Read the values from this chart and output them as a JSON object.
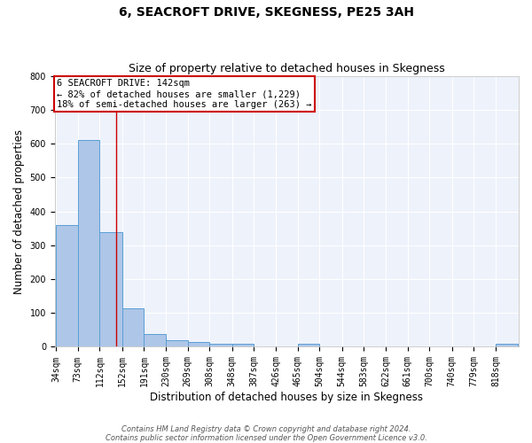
{
  "title": "6, SEACROFT DRIVE, SKEGNESS, PE25 3AH",
  "subtitle": "Size of property relative to detached houses in Skegness",
  "xlabel": "Distribution of detached houses by size in Skegness",
  "ylabel": "Number of detached properties",
  "bar_edges": [
    34,
    73,
    112,
    152,
    191,
    230,
    269,
    308,
    348,
    387,
    426,
    465,
    504,
    544,
    583,
    622,
    661,
    700,
    740,
    779,
    818
  ],
  "bar_heights": [
    360,
    610,
    340,
    113,
    38,
    20,
    15,
    10,
    8,
    0,
    0,
    8,
    0,
    0,
    0,
    0,
    0,
    0,
    0,
    0,
    8
  ],
  "bar_color": "#aec6e8",
  "bar_edge_color": "#5a9fd4",
  "bar_linewidth": 0.7,
  "background_color": "#eef2fb",
  "grid_color": "#ffffff",
  "red_line_x": 142,
  "annotation_text": "6 SEACROFT DRIVE: 142sqm\n← 82% of detached houses are smaller (1,229)\n18% of semi-detached houses are larger (263) →",
  "annotation_box_color": "#ffffff",
  "annotation_box_edge": "#cc0000",
  "ylim": [
    0,
    800
  ],
  "yticks": [
    0,
    100,
    200,
    300,
    400,
    500,
    600,
    700,
    800
  ],
  "footer_line1": "Contains HM Land Registry data © Crown copyright and database right 2024.",
  "footer_line2": "Contains public sector information licensed under the Open Government Licence v3.0.",
  "title_fontsize": 10,
  "subtitle_fontsize": 9,
  "tick_label_fontsize": 7,
  "ylabel_fontsize": 8.5,
  "xlabel_fontsize": 8.5,
  "annotation_fontsize": 7.5,
  "footer_fontsize": 6.0
}
